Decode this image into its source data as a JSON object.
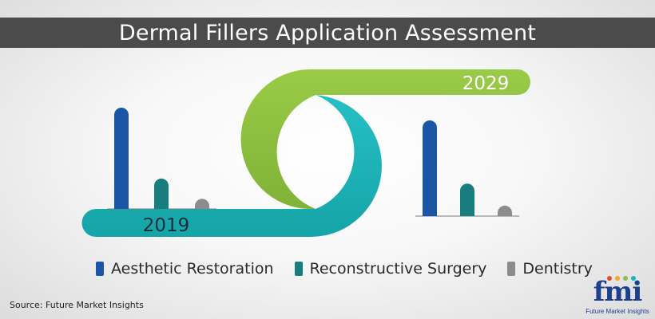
{
  "title": "Dermal Fillers Application Assessment",
  "source": "Source: Future Market Insights",
  "logo": {
    "text": "fmi",
    "subtext": "Future Market Insights"
  },
  "colors": {
    "aesthetic": "#1a55a6",
    "reconstructive": "#177d7e",
    "dentistry": "#8c8c8c",
    "band_2019": "#1fb3b7",
    "band_2029": "#8dc041",
    "title_bar": "#4b4b4b"
  },
  "chart_data": {
    "type": "bar",
    "title": "Dermal Fillers Application Assessment",
    "categories": [
      "2019",
      "2029"
    ],
    "series": [
      {
        "name": "Aesthetic Restoration",
        "values": [
          100,
          100
        ]
      },
      {
        "name": "Reconstructive Surgery",
        "values": [
          30,
          34
        ]
      },
      {
        "name": "Dentistry",
        "values": [
          10,
          11
        ]
      }
    ],
    "ylim": [
      0,
      100
    ],
    "legend": "bottom",
    "grid": false
  }
}
